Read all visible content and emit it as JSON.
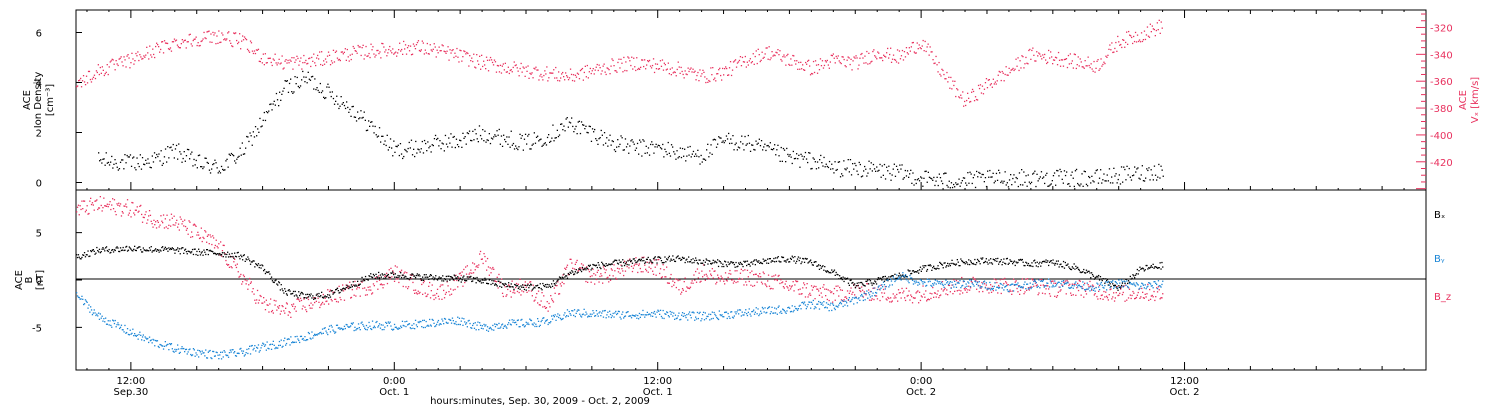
{
  "colors": {
    "black": "#000000",
    "pink": "#e8315e",
    "blue": "#1b86d6",
    "axis": "#000000"
  },
  "x_axis": {
    "label": "hours:minutes, Sep. 30, 2009 - Oct. 2, 2009",
    "range_hours": [
      -2.5,
      59.0
    ],
    "ticks": [
      {
        "hour": 0,
        "line1": "12:00",
        "line2": "Sep.30"
      },
      {
        "hour": 12,
        "line1": "0:00",
        "line2": "Oct. 1"
      },
      {
        "hour": 24,
        "line1": "12:00",
        "line2": "Oct. 1"
      },
      {
        "hour": 36,
        "line1": "0:00",
        "line2": "Oct. 2"
      },
      {
        "hour": 48,
        "line1": "12:00",
        "line2": "Oct. 2"
      }
    ]
  },
  "chart_data": [
    {
      "type": "scatter",
      "panel": "top",
      "left_axis": {
        "line1": "ACE",
        "line2": "Ion Density",
        "line3": "[cm⁻³]",
        "ylim": [
          -0.3,
          6.9
        ],
        "ticks": [
          0,
          2,
          4,
          6
        ]
      },
      "right_axis": {
        "line1": "ACE",
        "line2": "Vₓ [km/s]",
        "ylim": [
          -441,
          -307
        ],
        "ticks": [
          -320,
          -340,
          -360,
          -380,
          -400,
          -420
        ]
      },
      "series": [
        {
          "color": "black",
          "axis": "left",
          "x": [
            -1.5,
            0,
            1,
            2,
            3,
            4,
            5,
            6,
            7,
            8,
            9,
            10,
            11,
            12,
            13,
            14,
            15,
            16,
            17,
            18,
            19,
            20,
            21,
            22,
            23,
            24,
            25,
            26,
            27,
            28,
            29,
            30,
            31,
            32,
            33,
            34,
            35,
            36,
            37,
            38,
            39,
            40,
            41,
            42,
            43,
            44,
            45,
            46,
            47
          ],
          "y": [
            0.9,
            0.8,
            0.9,
            1.3,
            0.8,
            0.6,
            1.2,
            2.5,
            3.8,
            4.2,
            3.6,
            3.0,
            2.2,
            1.3,
            1.4,
            1.6,
            1.7,
            2.0,
            1.8,
            1.6,
            1.9,
            2.4,
            2.0,
            1.6,
            1.4,
            1.4,
            1.2,
            1.1,
            1.7,
            1.6,
            1.3,
            1.0,
            0.9,
            0.6,
            0.6,
            0.5,
            0.4,
            0.2,
            0.1,
            0.1,
            0.15,
            0.2,
            0.2,
            0.2,
            0.2,
            0.2,
            0.3,
            0.4,
            0.5
          ]
        },
        {
          "color": "pink",
          "axis": "right",
          "x": [
            -2.5,
            -1.5,
            0,
            1,
            2,
            3,
            4,
            5,
            6,
            7,
            8,
            9,
            10,
            11,
            12,
            13,
            14,
            15,
            16,
            17,
            18,
            19,
            20,
            21,
            22,
            23,
            24,
            25,
            26,
            27,
            28,
            29,
            30,
            31,
            32,
            33,
            34,
            35,
            36,
            37,
            38,
            39,
            40,
            41,
            42,
            43,
            44,
            45,
            46,
            47
          ],
          "y": [
            -362,
            -352,
            -344,
            -337,
            -331,
            -328,
            -326,
            -330,
            -342,
            -346,
            -345,
            -342,
            -339,
            -337,
            -336,
            -334,
            -337,
            -341,
            -346,
            -349,
            -352,
            -354,
            -356,
            -352,
            -348,
            -346,
            -348,
            -351,
            -356,
            -353,
            -344,
            -338,
            -344,
            -350,
            -344,
            -346,
            -338,
            -342,
            -330,
            -355,
            -375,
            -362,
            -352,
            -340,
            -342,
            -345,
            -348,
            -330,
            -325,
            -318
          ]
        }
      ]
    },
    {
      "type": "scatter",
      "panel": "bottom",
      "left_axis": {
        "line1": "ACE",
        "line2": "B",
        "line3": "[nT]",
        "ylim": [
          -9.5,
          9.5
        ],
        "ticks": [
          -5,
          0,
          5
        ]
      },
      "zero_line": 0,
      "series": [
        {
          "name": "Bₓ",
          "color": "black",
          "x": [
            -2.5,
            -1.5,
            0,
            1,
            2,
            3,
            4,
            5,
            6,
            7,
            8,
            9,
            10,
            11,
            12,
            13,
            14,
            15,
            16,
            17,
            18,
            19,
            20,
            21,
            22,
            23,
            24,
            25,
            26,
            27,
            28,
            29,
            30,
            31,
            32,
            33,
            34,
            35,
            36,
            37,
            38,
            39,
            40,
            41,
            42,
            43,
            44,
            45,
            46,
            47
          ],
          "y": [
            2.5,
            3.2,
            3.4,
            3.3,
            3.2,
            3.0,
            2.9,
            2.6,
            1.3,
            -1.2,
            -1.7,
            -1.5,
            -0.5,
            0.5,
            0.6,
            0.4,
            0.3,
            0.2,
            0.0,
            -0.5,
            -0.7,
            -0.6,
            0.8,
            1.5,
            1.8,
            2.0,
            2.2,
            2.3,
            2.0,
            1.8,
            1.7,
            2.1,
            2.3,
            1.9,
            0.8,
            -0.6,
            0.0,
            0.5,
            1.2,
            1.7,
            2.0,
            2.1,
            2.0,
            1.8,
            1.9,
            1.4,
            0.3,
            -0.8,
            1.2,
            1.6
          ]
        },
        {
          "name": "Bᵧ",
          "color": "blue",
          "x": [
            -2.5,
            -1.5,
            0,
            1,
            2,
            3,
            4,
            5,
            6,
            7,
            8,
            9,
            10,
            11,
            12,
            13,
            14,
            15,
            16,
            17,
            18,
            19,
            20,
            21,
            22,
            23,
            24,
            25,
            26,
            27,
            28,
            29,
            30,
            31,
            32,
            33,
            34,
            35,
            36,
            37,
            38,
            39,
            40,
            41,
            42,
            43,
            44,
            45,
            46,
            47
          ],
          "y": [
            -1.5,
            -3.8,
            -5.5,
            -6.5,
            -7.2,
            -7.6,
            -7.9,
            -7.6,
            -7.0,
            -6.5,
            -5.9,
            -5.2,
            -4.9,
            -4.7,
            -4.8,
            -4.6,
            -4.4,
            -4.2,
            -5.0,
            -4.6,
            -4.5,
            -4.3,
            -3.4,
            -3.5,
            -3.6,
            -3.6,
            -3.5,
            -3.7,
            -3.8,
            -3.6,
            -3.4,
            -3.2,
            -3.0,
            -2.5,
            -2.8,
            -2.0,
            -1.0,
            0.5,
            -0.2,
            -0.4,
            -0.3,
            -0.5,
            -0.7,
            -0.4,
            -0.2,
            -0.5,
            -0.7,
            -0.3,
            -0.6,
            -0.4
          ]
        },
        {
          "name": "B_z",
          "color": "pink",
          "x": [
            -2.5,
            -1.5,
            0,
            1,
            2,
            3,
            4,
            5,
            6,
            7,
            8,
            9,
            10,
            11,
            12,
            13,
            14,
            15,
            16,
            17,
            18,
            19,
            20,
            21,
            22,
            23,
            24,
            25,
            26,
            27,
            28,
            29,
            30,
            31,
            32,
            33,
            34,
            35,
            36,
            37,
            38,
            39,
            40,
            41,
            42,
            43,
            44,
            45,
            46,
            47
          ],
          "y": [
            7.5,
            8.0,
            7.6,
            6.5,
            6.2,
            5.0,
            3.5,
            0.5,
            -2.5,
            -3.2,
            -2.5,
            -1.8,
            -1.0,
            -0.5,
            0.8,
            -0.6,
            -1.3,
            0.0,
            2.5,
            -1.0,
            -0.5,
            -2.8,
            1.6,
            0.4,
            0.8,
            1.7,
            1.4,
            -0.8,
            0.9,
            0.1,
            0.4,
            0.0,
            -0.6,
            -1.1,
            -1.5,
            -1.1,
            -1.3,
            -1.6,
            -1.4,
            -0.8,
            -0.5,
            -0.4,
            -0.6,
            -0.5,
            -0.9,
            -0.7,
            -1.1,
            -1.4,
            -1.2,
            -1.4
          ]
        }
      ]
    }
  ]
}
